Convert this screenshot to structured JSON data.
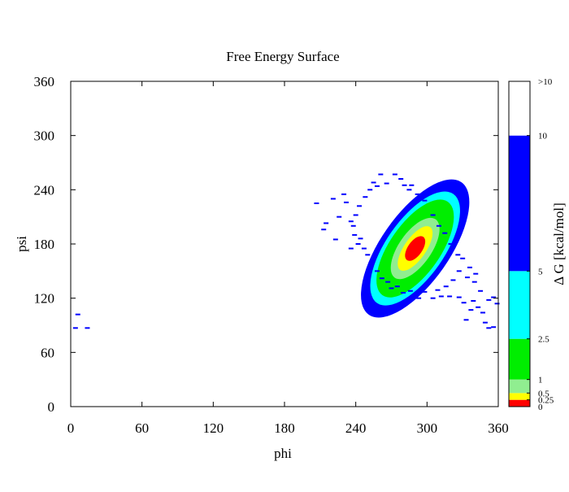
{
  "chart_data": {
    "type": "heatmap",
    "title": "Free Energy Surface",
    "xlabel": "phi",
    "ylabel": "psi",
    "xlim": [
      0,
      360
    ],
    "ylim": [
      0,
      360
    ],
    "xticks": [
      "0",
      "60",
      "120",
      "180",
      "240",
      "300",
      "360"
    ],
    "yticks": [
      "0",
      "60",
      "120",
      "180",
      "240",
      "300",
      "360"
    ],
    "xtick_values": [
      0,
      60,
      120,
      180,
      240,
      300,
      360
    ],
    "ytick_values": [
      0,
      60,
      120,
      180,
      240,
      300,
      360
    ],
    "colorbar": {
      "label": "Δ G [kcal/mol]",
      "range": [
        0,
        12
      ],
      "levels": [
        {
          "label": "0",
          "from": 0,
          "to": 0.25,
          "color": "#ff0000"
        },
        {
          "label": "0.25",
          "from": 0.25,
          "to": 0.5,
          "color": "#ffff00"
        },
        {
          "label": "0.5",
          "from": 0.5,
          "to": 1,
          "color": "#90ee90"
        },
        {
          "label": "1",
          "from": 1,
          "to": 2.5,
          "color": "#00ee00"
        },
        {
          "label": "2.5",
          "from": 2.5,
          "to": 5,
          "color": "#00ffff"
        },
        {
          "label": "5",
          "from": 5,
          "to": 10,
          "color": "#0000ff"
        },
        {
          "label": "10",
          "from": 10,
          "to": 12,
          "color": "#ffffff"
        }
      ],
      "top_label": ">10"
    },
    "basin": {
      "center_phi": 290,
      "center_psi": 175,
      "tilt_deg": -55,
      "contours": [
        {
          "level": "5",
          "color": "#0000ff",
          "semi_major": 68,
          "semi_minor": 38
        },
        {
          "level": "2.5",
          "color": "#00ffff",
          "semi_major": 56,
          "semi_minor": 32
        },
        {
          "level": "1",
          "color": "#00ee00",
          "semi_major": 48,
          "semi_minor": 28
        },
        {
          "level": "0.5",
          "color": "#90ee90",
          "semi_major": 30,
          "semi_minor": 18
        },
        {
          "level": "0.25",
          "color": "#ffff00",
          "semi_major": 22,
          "semi_minor": 12
        },
        {
          "level": "0",
          "color": "#ff0000",
          "semi_major": 12,
          "semi_minor": 8
        }
      ]
    },
    "scatter_points": [
      {
        "phi": 6,
        "psi": 102
      },
      {
        "phi": 4,
        "psi": 87
      },
      {
        "phi": 14,
        "psi": 87
      },
      {
        "phi": 207,
        "psi": 225
      },
      {
        "phi": 215,
        "psi": 203
      },
      {
        "phi": 221,
        "psi": 230
      },
      {
        "phi": 226,
        "psi": 210
      },
      {
        "phi": 223,
        "psi": 185
      },
      {
        "phi": 213,
        "psi": 196
      },
      {
        "phi": 230,
        "psi": 235
      },
      {
        "phi": 236,
        "psi": 175
      },
      {
        "phi": 232,
        "psi": 226
      },
      {
        "phi": 261,
        "psi": 257
      },
      {
        "phi": 273,
        "psi": 257
      },
      {
        "phi": 255,
        "psi": 248
      },
      {
        "phi": 278,
        "psi": 252
      },
      {
        "phi": 281,
        "psi": 245
      },
      {
        "phi": 287,
        "psi": 245
      },
      {
        "phi": 270,
        "psi": 131
      },
      {
        "phi": 280,
        "psi": 126
      },
      {
        "phi": 293,
        "psi": 120
      },
      {
        "phi": 305,
        "psi": 120
      },
      {
        "phi": 312,
        "psi": 122
      },
      {
        "phi": 319,
        "psi": 122
      },
      {
        "phi": 327,
        "psi": 121
      },
      {
        "phi": 331,
        "psi": 115
      },
      {
        "phi": 339,
        "psi": 117
      },
      {
        "phi": 343,
        "psi": 110
      },
      {
        "phi": 347,
        "psi": 104
      },
      {
        "phi": 352,
        "psi": 118
      },
      {
        "phi": 356,
        "psi": 121
      },
      {
        "phi": 359,
        "psi": 114
      },
      {
        "phi": 337,
        "psi": 107
      },
      {
        "phi": 333,
        "psi": 96
      },
      {
        "phi": 352,
        "psi": 87
      },
      {
        "phi": 356,
        "psi": 88
      },
      {
        "phi": 349,
        "psi": 93
      },
      {
        "phi": 340,
        "psi": 138
      },
      {
        "phi": 345,
        "psi": 128
      },
      {
        "phi": 334,
        "psi": 143
      },
      {
        "phi": 341,
        "psi": 147
      },
      {
        "phi": 336,
        "psi": 154
      },
      {
        "phi": 330,
        "psi": 164
      },
      {
        "phi": 320,
        "psi": 180
      },
      {
        "phi": 326,
        "psi": 168
      },
      {
        "phi": 310,
        "psi": 200
      },
      {
        "phi": 315,
        "psi": 192
      },
      {
        "phi": 305,
        "psi": 212
      },
      {
        "phi": 298,
        "psi": 228
      },
      {
        "phi": 292,
        "psi": 235
      },
      {
        "phi": 285,
        "psi": 240
      },
      {
        "phi": 243,
        "psi": 222
      },
      {
        "phi": 240,
        "psi": 212
      },
      {
        "phi": 238,
        "psi": 200
      },
      {
        "phi": 244,
        "psi": 186
      },
      {
        "phi": 247,
        "psi": 175
      },
      {
        "phi": 250,
        "psi": 168
      },
      {
        "phi": 253,
        "psi": 158
      },
      {
        "phi": 258,
        "psi": 150
      },
      {
        "phi": 262,
        "psi": 142
      },
      {
        "phi": 267,
        "psi": 138
      },
      {
        "phi": 275,
        "psi": 133
      },
      {
        "phi": 286,
        "psi": 128
      },
      {
        "phi": 298,
        "psi": 127
      },
      {
        "phi": 309,
        "psi": 129
      },
      {
        "phi": 316,
        "psi": 133
      },
      {
        "phi": 322,
        "psi": 140
      },
      {
        "phi": 327,
        "psi": 150
      },
      {
        "phi": 248,
        "psi": 232
      },
      {
        "phi": 252,
        "psi": 240
      },
      {
        "phi": 258,
        "psi": 244
      },
      {
        "phi": 266,
        "psi": 247
      },
      {
        "phi": 239,
        "psi": 190
      },
      {
        "phi": 236,
        "psi": 205
      },
      {
        "phi": 242,
        "psi": 180
      }
    ]
  }
}
